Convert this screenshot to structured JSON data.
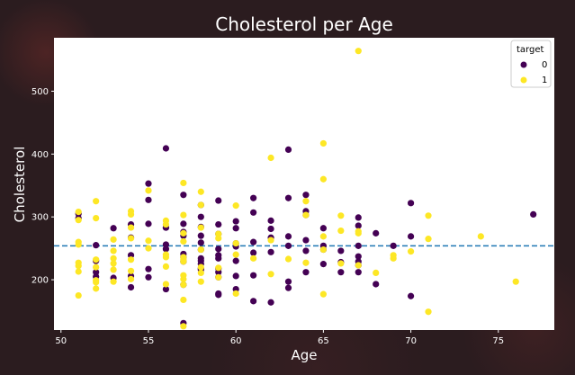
{
  "chart_data": {
    "type": "scatter",
    "title": "Cholesterol per Age",
    "xlabel": "Age",
    "ylabel": "Cholesterol",
    "xlim": [
      49.6,
      78.2
    ],
    "ylim": [
      120,
      585
    ],
    "xticks": [
      50,
      55,
      60,
      65,
      70,
      75
    ],
    "yticks": [
      200,
      300,
      400,
      500
    ],
    "grid": false,
    "legend": {
      "title": "target",
      "placement": "top-right"
    },
    "reference_line": {
      "y": 254,
      "style": "dashed",
      "color": "#1f77b4"
    },
    "series": [
      {
        "name": "0",
        "color": "#440154",
        "points": [
          [
            51,
            305
          ],
          [
            51,
            298
          ],
          [
            52,
            255
          ],
          [
            52,
            230
          ],
          [
            52,
            212
          ],
          [
            52,
            205
          ],
          [
            53,
            282
          ],
          [
            53,
            203
          ],
          [
            54,
            288
          ],
          [
            54,
            267
          ],
          [
            54,
            239
          ],
          [
            54,
            206
          ],
          [
            54,
            188
          ],
          [
            55,
            353
          ],
          [
            55,
            327
          ],
          [
            55,
            289
          ],
          [
            55,
            217
          ],
          [
            55,
            204
          ],
          [
            56,
            409
          ],
          [
            56,
            256
          ],
          [
            56,
            249
          ],
          [
            56,
            283
          ],
          [
            56,
            283
          ],
          [
            56,
            185
          ],
          [
            57,
            335
          ],
          [
            57,
            289
          ],
          [
            57,
            276
          ],
          [
            57,
            270
          ],
          [
            57,
            241
          ],
          [
            57,
            236
          ],
          [
            57,
            229
          ],
          [
            57,
            192
          ],
          [
            57,
            131
          ],
          [
            58,
            319
          ],
          [
            58,
            300
          ],
          [
            58,
            284
          ],
          [
            58,
            270
          ],
          [
            58,
            259
          ],
          [
            58,
            248
          ],
          [
            58,
            234
          ],
          [
            58,
            230
          ],
          [
            58,
            225
          ],
          [
            58,
            218
          ],
          [
            58,
            216
          ],
          [
            59,
            326
          ],
          [
            59,
            288
          ],
          [
            59,
            273
          ],
          [
            59,
            249
          ],
          [
            59,
            239
          ],
          [
            59,
            234
          ],
          [
            59,
            218
          ],
          [
            59,
            212
          ],
          [
            59,
            204
          ],
          [
            59,
            178
          ],
          [
            59,
            176
          ],
          [
            60,
            293
          ],
          [
            60,
            282
          ],
          [
            60,
            258
          ],
          [
            60,
            253
          ],
          [
            60,
            230
          ],
          [
            60,
            206
          ],
          [
            60,
            185
          ],
          [
            61,
            330
          ],
          [
            61,
            307
          ],
          [
            61,
            260
          ],
          [
            61,
            243
          ],
          [
            61,
            207
          ],
          [
            61,
            166
          ],
          [
            62,
            294
          ],
          [
            62,
            281
          ],
          [
            62,
            267
          ],
          [
            62,
            244
          ],
          [
            62,
            164
          ],
          [
            63,
            407
          ],
          [
            63,
            330
          ],
          [
            63,
            269
          ],
          [
            63,
            254
          ],
          [
            63,
            197
          ],
          [
            63,
            187
          ],
          [
            64,
            335
          ],
          [
            64,
            309
          ],
          [
            64,
            303
          ],
          [
            64,
            263
          ],
          [
            64,
            246
          ],
          [
            64,
            212
          ],
          [
            65,
            282
          ],
          [
            65,
            254
          ],
          [
            65,
            248
          ],
          [
            65,
            225
          ],
          [
            66,
            246
          ],
          [
            66,
            228
          ],
          [
            66,
            212
          ],
          [
            67,
            299
          ],
          [
            67,
            286
          ],
          [
            67,
            254
          ],
          [
            67,
            237
          ],
          [
            67,
            229
          ],
          [
            67,
            223
          ],
          [
            67,
            212
          ],
          [
            68,
            274
          ],
          [
            68,
            193
          ],
          [
            69,
            254
          ],
          [
            70,
            322
          ],
          [
            70,
            269
          ],
          [
            70,
            174
          ],
          [
            77,
            304
          ]
        ]
      },
      {
        "name": "1",
        "color": "#fde725",
        "points": [
          [
            51,
            308
          ],
          [
            51,
            295
          ],
          [
            51,
            260
          ],
          [
            51,
            256
          ],
          [
            51,
            227
          ],
          [
            51,
            222
          ],
          [
            51,
            213
          ],
          [
            51,
            175
          ],
          [
            52,
            325
          ],
          [
            52,
            298
          ],
          [
            52,
            232
          ],
          [
            52,
            220
          ],
          [
            52,
            199
          ],
          [
            52,
            196
          ],
          [
            52,
            186
          ],
          [
            53,
            264
          ],
          [
            53,
            246
          ],
          [
            53,
            234
          ],
          [
            53,
            226
          ],
          [
            53,
            216
          ],
          [
            53,
            197
          ],
          [
            54,
            309
          ],
          [
            54,
            304
          ],
          [
            54,
            283
          ],
          [
            54,
            266
          ],
          [
            54,
            232
          ],
          [
            54,
            214
          ],
          [
            54,
            201
          ],
          [
            55,
            342
          ],
          [
            55,
            262
          ],
          [
            55,
            250
          ],
          [
            56,
            294
          ],
          [
            56,
            288
          ],
          [
            56,
            240
          ],
          [
            56,
            236
          ],
          [
            56,
            221
          ],
          [
            56,
            193
          ],
          [
            57,
            354
          ],
          [
            57,
            303
          ],
          [
            57,
            274
          ],
          [
            57,
            261
          ],
          [
            57,
            236
          ],
          [
            57,
            232
          ],
          [
            57,
            229
          ],
          [
            57,
            207
          ],
          [
            57,
            201
          ],
          [
            57,
            192
          ],
          [
            57,
            168
          ],
          [
            57,
            126
          ],
          [
            58,
            340
          ],
          [
            58,
            319
          ],
          [
            58,
            283
          ],
          [
            58,
            248
          ],
          [
            58,
            220
          ],
          [
            58,
            211
          ],
          [
            58,
            197
          ],
          [
            59,
            273
          ],
          [
            59,
            266
          ],
          [
            59,
            219
          ],
          [
            59,
            204
          ],
          [
            60,
            318
          ],
          [
            60,
            258
          ],
          [
            60,
            240
          ],
          [
            60,
            178
          ],
          [
            61,
            234
          ],
          [
            62,
            394
          ],
          [
            62,
            263
          ],
          [
            62,
            209
          ],
          [
            63,
            233
          ],
          [
            64,
            325
          ],
          [
            64,
            303
          ],
          [
            64,
            227
          ],
          [
            65,
            417
          ],
          [
            65,
            360
          ],
          [
            65,
            269
          ],
          [
            65,
            248
          ],
          [
            65,
            177
          ],
          [
            66,
            302
          ],
          [
            66,
            278
          ],
          [
            66,
            226
          ],
          [
            67,
            564
          ],
          [
            67,
            277
          ],
          [
            67,
            274
          ],
          [
            67,
            223
          ],
          [
            68,
            211
          ],
          [
            69,
            239
          ],
          [
            69,
            234
          ],
          [
            70,
            245
          ],
          [
            71,
            302
          ],
          [
            71,
            265
          ],
          [
            71,
            149
          ],
          [
            74,
            269
          ],
          [
            76,
            197
          ]
        ]
      }
    ]
  }
}
